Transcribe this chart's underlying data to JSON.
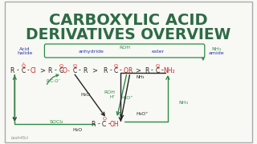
{
  "title_line1": "CARBOXYLIC ACID",
  "title_line2": "DERIVATIVES OVERVIEW",
  "title_color": "#2d6b45",
  "bg_color": "#f8f8f4",
  "border_color": "#aaaaaa",
  "green": "#2d8a45",
  "black": "#222222",
  "red": "#cc2222",
  "blue": "#2233aa",
  "watermark": "Leah4Sci"
}
